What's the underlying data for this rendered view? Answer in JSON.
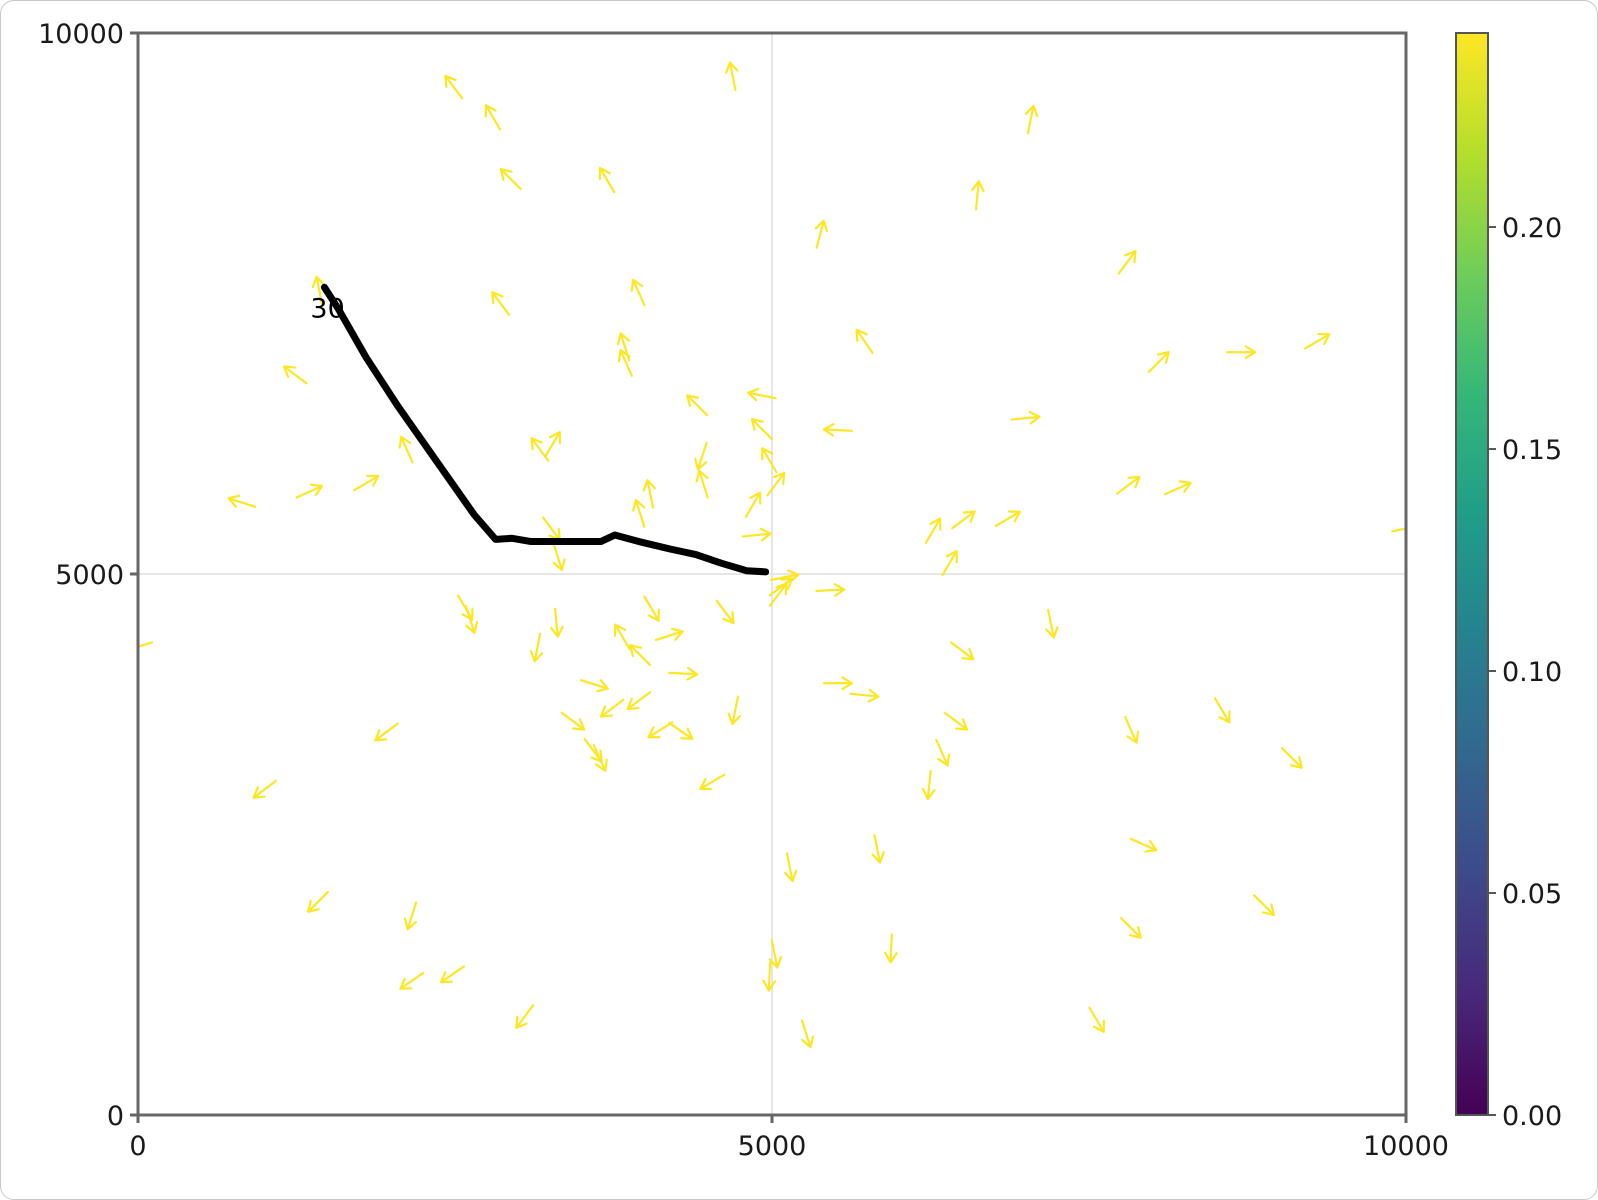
{
  "chart_data": {
    "type": "quiver",
    "title": "",
    "xlabel": "",
    "ylabel": "",
    "xlim": [
      0,
      10000
    ],
    "ylim": [
      0,
      10000
    ],
    "x_ticks": [
      "0",
      "5000",
      "10000"
    ],
    "y_ticks": [
      "0",
      "5000",
      "10000"
    ],
    "grid": true,
    "arrow_color": "#fde725",
    "arrow_value": 0.24,
    "vector_field": [
      {
        "x": 4690,
        "y": 9600,
        "dx": -0.2,
        "dy": 1
      },
      {
        "x": 2490,
        "y": 9500,
        "dx": -0.6,
        "dy": 0.8
      },
      {
        "x": 2800,
        "y": 9220,
        "dx": -0.5,
        "dy": 0.85
      },
      {
        "x": 7040,
        "y": 9200,
        "dx": 0.2,
        "dy": 1
      },
      {
        "x": 2940,
        "y": 8650,
        "dx": -0.7,
        "dy": 0.7
      },
      {
        "x": 3700,
        "y": 8640,
        "dx": -0.5,
        "dy": 0.85
      },
      {
        "x": 6620,
        "y": 8500,
        "dx": 0.1,
        "dy": 1
      },
      {
        "x": 5380,
        "y": 8140,
        "dx": 0.25,
        "dy": 0.95
      },
      {
        "x": 7800,
        "y": 7880,
        "dx": 0.6,
        "dy": 0.8
      },
      {
        "x": 1430,
        "y": 7620,
        "dx": -0.2,
        "dy": 1
      },
      {
        "x": 2860,
        "y": 7500,
        "dx": -0.6,
        "dy": 0.8
      },
      {
        "x": 3950,
        "y": 7600,
        "dx": -0.4,
        "dy": 0.9
      },
      {
        "x": 5730,
        "y": 7150,
        "dx": -0.55,
        "dy": 0.8
      },
      {
        "x": 3840,
        "y": 7100,
        "dx": -0.3,
        "dy": 0.95
      },
      {
        "x": 3850,
        "y": 6950,
        "dx": -0.4,
        "dy": 0.9
      },
      {
        "x": 9300,
        "y": 7150,
        "dx": 0.85,
        "dy": 0.5
      },
      {
        "x": 8700,
        "y": 7050,
        "dx": 1,
        "dy": 0
      },
      {
        "x": 8050,
        "y": 6960,
        "dx": 0.7,
        "dy": 0.7
      },
      {
        "x": 1240,
        "y": 6840,
        "dx": -0.8,
        "dy": 0.6
      },
      {
        "x": 4410,
        "y": 6560,
        "dx": -0.7,
        "dy": 0.7
      },
      {
        "x": 4920,
        "y": 6650,
        "dx": -1,
        "dy": 0.2
      },
      {
        "x": 7000,
        "y": 6440,
        "dx": 1,
        "dy": 0.1
      },
      {
        "x": 5520,
        "y": 6330,
        "dx": -1,
        "dy": 0.05
      },
      {
        "x": 4920,
        "y": 6340,
        "dx": -0.7,
        "dy": 0.7
      },
      {
        "x": 3270,
        "y": 6200,
        "dx": 0.5,
        "dy": 0.85
      },
      {
        "x": 3170,
        "y": 6150,
        "dx": -0.6,
        "dy": 0.8
      },
      {
        "x": 2120,
        "y": 6150,
        "dx": -0.4,
        "dy": 0.9
      },
      {
        "x": 4450,
        "y": 6090,
        "dx": -0.3,
        "dy": -0.9
      },
      {
        "x": 4980,
        "y": 6050,
        "dx": -0.5,
        "dy": 0.85
      },
      {
        "x": 7810,
        "y": 5820,
        "dx": 0.8,
        "dy": 0.6
      },
      {
        "x": 8200,
        "y": 5790,
        "dx": 0.9,
        "dy": 0.4
      },
      {
        "x": 4460,
        "y": 5830,
        "dx": -0.3,
        "dy": 0.95
      },
      {
        "x": 5030,
        "y": 5830,
        "dx": 0.6,
        "dy": 0.8
      },
      {
        "x": 1800,
        "y": 5840,
        "dx": 0.85,
        "dy": 0.5
      },
      {
        "x": 1350,
        "y": 5760,
        "dx": 0.9,
        "dy": 0.4
      },
      {
        "x": 820,
        "y": 5660,
        "dx": -0.95,
        "dy": 0.3
      },
      {
        "x": 4040,
        "y": 5740,
        "dx": -0.2,
        "dy": 1
      },
      {
        "x": 4850,
        "y": 5640,
        "dx": 0.5,
        "dy": 0.85
      },
      {
        "x": 3960,
        "y": 5560,
        "dx": -0.3,
        "dy": 0.95
      },
      {
        "x": 6510,
        "y": 5500,
        "dx": 0.8,
        "dy": 0.6
      },
      {
        "x": 6860,
        "y": 5510,
        "dx": 0.85,
        "dy": 0.5
      },
      {
        "x": 6270,
        "y": 5400,
        "dx": 0.5,
        "dy": 0.85
      },
      {
        "x": 3260,
        "y": 5420,
        "dx": 0.6,
        "dy": -0.8
      },
      {
        "x": 4880,
        "y": 5360,
        "dx": 1,
        "dy": 0.1
      },
      {
        "x": 10000,
        "y": 5420,
        "dx": 1,
        "dy": 0.2
      },
      {
        "x": 3310,
        "y": 5160,
        "dx": 0.3,
        "dy": -0.95
      },
      {
        "x": 6400,
        "y": 5100,
        "dx": 0.5,
        "dy": 0.85
      },
      {
        "x": 5100,
        "y": 4970,
        "dx": 1,
        "dy": 0.2
      },
      {
        "x": 5070,
        "y": 4880,
        "dx": 0.8,
        "dy": 0.6
      },
      {
        "x": 5460,
        "y": 4850,
        "dx": 1,
        "dy": 0.05
      },
      {
        "x": 5050,
        "y": 4810,
        "dx": 0.6,
        "dy": 0.8
      },
      {
        "x": 2580,
        "y": 4690,
        "dx": 0.5,
        "dy": -0.85
      },
      {
        "x": 2620,
        "y": 4580,
        "dx": 0.3,
        "dy": -0.95
      },
      {
        "x": 4050,
        "y": 4680,
        "dx": 0.5,
        "dy": -0.85
      },
      {
        "x": 4630,
        "y": 4650,
        "dx": 0.6,
        "dy": -0.8
      },
      {
        "x": 3300,
        "y": 4550,
        "dx": 0.1,
        "dy": -1
      },
      {
        "x": 4190,
        "y": 4430,
        "dx": 0.95,
        "dy": 0.3
      },
      {
        "x": 3820,
        "y": 4420,
        "dx": -0.5,
        "dy": 0.85
      },
      {
        "x": 7200,
        "y": 4540,
        "dx": 0.2,
        "dy": -0.95
      },
      {
        "x": 3150,
        "y": 4320,
        "dx": -0.2,
        "dy": -1
      },
      {
        "x": 3960,
        "y": 4250,
        "dx": -0.7,
        "dy": 0.7
      },
      {
        "x": 6500,
        "y": 4290,
        "dx": 0.8,
        "dy": -0.6
      },
      {
        "x": 5,
        "y": 4330,
        "dx": -1,
        "dy": -0.3
      },
      {
        "x": 4300,
        "y": 4080,
        "dx": 1,
        "dy": -0.05
      },
      {
        "x": 3600,
        "y": 3980,
        "dx": 0.95,
        "dy": -0.3
      },
      {
        "x": 5520,
        "y": 3990,
        "dx": 1,
        "dy": 0
      },
      {
        "x": 5730,
        "y": 3880,
        "dx": 1,
        "dy": -0.1
      },
      {
        "x": 3950,
        "y": 3830,
        "dx": -0.8,
        "dy": -0.6
      },
      {
        "x": 3740,
        "y": 3760,
        "dx": -0.8,
        "dy": -0.6
      },
      {
        "x": 8550,
        "y": 3740,
        "dx": 0.5,
        "dy": -0.85
      },
      {
        "x": 4710,
        "y": 3740,
        "dx": -0.2,
        "dy": -1
      },
      {
        "x": 3430,
        "y": 3640,
        "dx": 0.8,
        "dy": -0.6
      },
      {
        "x": 6450,
        "y": 3640,
        "dx": 0.8,
        "dy": -0.6
      },
      {
        "x": 7830,
        "y": 3560,
        "dx": 0.4,
        "dy": -0.9
      },
      {
        "x": 4120,
        "y": 3560,
        "dx": -0.8,
        "dy": -0.5
      },
      {
        "x": 4280,
        "y": 3550,
        "dx": 0.8,
        "dy": -0.55
      },
      {
        "x": 1960,
        "y": 3540,
        "dx": -0.8,
        "dy": -0.6
      },
      {
        "x": 3590,
        "y": 3370,
        "dx": 0.6,
        "dy": -0.8
      },
      {
        "x": 3640,
        "y": 3300,
        "dx": 0.4,
        "dy": -0.9
      },
      {
        "x": 6340,
        "y": 3350,
        "dx": 0.4,
        "dy": -0.9
      },
      {
        "x": 9100,
        "y": 3300,
        "dx": 0.7,
        "dy": -0.7
      },
      {
        "x": 6240,
        "y": 3050,
        "dx": -0.1,
        "dy": -1
      },
      {
        "x": 4530,
        "y": 3080,
        "dx": -0.85,
        "dy": -0.5
      },
      {
        "x": 1000,
        "y": 3010,
        "dx": -0.8,
        "dy": -0.6
      },
      {
        "x": 7930,
        "y": 2500,
        "dx": 0.9,
        "dy": -0.4
      },
      {
        "x": 5830,
        "y": 2460,
        "dx": 0.2,
        "dy": -1
      },
      {
        "x": 5140,
        "y": 2290,
        "dx": 0.2,
        "dy": -1
      },
      {
        "x": 1420,
        "y": 1970,
        "dx": -0.7,
        "dy": -0.7
      },
      {
        "x": 8880,
        "y": 1940,
        "dx": 0.7,
        "dy": -0.7
      },
      {
        "x": 2160,
        "y": 1840,
        "dx": -0.3,
        "dy": -0.95
      },
      {
        "x": 7830,
        "y": 1730,
        "dx": 0.7,
        "dy": -0.7
      },
      {
        "x": 5940,
        "y": 1540,
        "dx": -0.05,
        "dy": -1
      },
      {
        "x": 5020,
        "y": 1490,
        "dx": 0.2,
        "dy": -1
      },
      {
        "x": 4980,
        "y": 1280,
        "dx": -0.05,
        "dy": -1
      },
      {
        "x": 2480,
        "y": 1300,
        "dx": -0.8,
        "dy": -0.55
      },
      {
        "x": 2160,
        "y": 1240,
        "dx": -0.8,
        "dy": -0.55
      },
      {
        "x": 3050,
        "y": 910,
        "dx": -0.6,
        "dy": -0.8
      },
      {
        "x": 7560,
        "y": 880,
        "dx": 0.5,
        "dy": -0.85
      },
      {
        "x": 5270,
        "y": 750,
        "dx": 0.3,
        "dy": -0.95
      }
    ],
    "trajectory": {
      "color": "#000000",
      "start_label": "30",
      "x": [
        1470,
        1580,
        1800,
        2050,
        2350,
        2650,
        2820,
        2950,
        3100,
        3350,
        3650,
        3760,
        3950,
        4200,
        4400,
        4600,
        4800,
        4950
      ],
      "y": [
        7650,
        7450,
        7000,
        6550,
        6050,
        5550,
        5320,
        5330,
        5300,
        5300,
        5300,
        5360,
        5300,
        5230,
        5180,
        5100,
        5030,
        5020
      ]
    },
    "colorbar": {
      "colormap": "viridis",
      "min": 0.0,
      "max": 0.2437,
      "ticks": [
        "0.00",
        "0.05",
        "0.10",
        "0.15",
        "0.20"
      ],
      "tick_values": [
        0.0,
        0.05,
        0.1,
        0.15,
        0.2
      ],
      "colors": [
        "#440154",
        "#482878",
        "#3e4989",
        "#31688e",
        "#26828e",
        "#1f9e89",
        "#35b779",
        "#6ece58",
        "#b5de2b",
        "#fde725"
      ]
    }
  }
}
